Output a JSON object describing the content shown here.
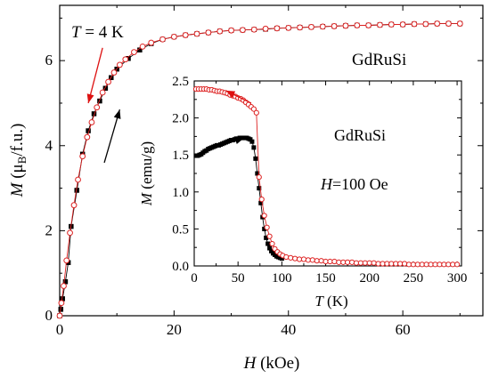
{
  "chart_data": [
    {
      "type": "scatter",
      "xlim": [
        0,
        74
      ],
      "ylim": [
        0,
        7.3
      ],
      "xticks": [
        "0",
        "20",
        "40",
        "60"
      ],
      "yticks": [
        "0",
        "2",
        "4",
        "6"
      ],
      "xlabel": {
        "sym": "H",
        "rest": " (kOe)"
      },
      "ylabel": {
        "sym": "M",
        "rest": " (μ",
        "sub": "B",
        "tail": "/f.u.)"
      },
      "annotations": {
        "temp_sym": "T",
        "temp_rest": " = 4 K",
        "compound": "GdRuSi"
      },
      "arrows": [
        {
          "direction": "down",
          "color": "#dd1111",
          "x0": 7.5,
          "y0": 6.3,
          "x1": 5.0,
          "y1": 5.0
        },
        {
          "direction": "up",
          "color": "#000000",
          "x0": 7.8,
          "y0": 3.6,
          "x1": 10.5,
          "y1": 4.85
        }
      ],
      "series": [
        {
          "marker": "filled-square",
          "color": "#000000",
          "x": [
            0,
            0.2,
            0.5,
            1,
            1.5,
            2,
            3,
            4,
            5,
            6,
            7,
            8,
            9,
            10,
            12,
            14,
            16,
            18,
            20,
            22,
            24,
            26,
            28,
            30,
            32,
            34,
            36,
            38,
            40,
            42,
            44,
            46,
            48,
            50,
            52,
            54,
            56,
            58,
            60,
            62,
            64,
            66,
            68,
            70
          ],
          "y": [
            0.0,
            0.15,
            0.4,
            0.8,
            1.25,
            2.1,
            2.95,
            3.8,
            4.35,
            4.75,
            5.05,
            5.35,
            5.6,
            5.8,
            6.05,
            6.25,
            6.4,
            6.5,
            6.56,
            6.6,
            6.63,
            6.66,
            6.69,
            6.71,
            6.72,
            6.73,
            6.74,
            6.76,
            6.77,
            6.78,
            6.79,
            6.8,
            6.81,
            6.82,
            6.83,
            6.83,
            6.84,
            6.85,
            6.85,
            6.86,
            6.86,
            6.87,
            6.87,
            6.87
          ]
        },
        {
          "marker": "open-circle",
          "color": "#dd2222",
          "x": [
            0,
            0.3,
            0.7,
            1.2,
            1.8,
            2.5,
            3.2,
            4,
            4.8,
            5.6,
            6.5,
            7.5,
            8.5,
            9.5,
            10.5,
            11.5,
            13,
            14.5,
            16,
            18,
            20,
            22,
            24,
            26,
            28,
            30,
            32,
            34,
            36,
            38,
            40,
            42,
            44,
            46,
            48,
            50,
            52,
            54,
            56,
            58,
            60,
            62,
            64,
            66,
            68,
            70
          ],
          "y": [
            0.0,
            0.3,
            0.7,
            1.3,
            1.95,
            2.6,
            3.2,
            3.75,
            4.2,
            4.55,
            4.9,
            5.25,
            5.5,
            5.72,
            5.9,
            6.03,
            6.2,
            6.33,
            6.42,
            6.5,
            6.56,
            6.6,
            6.63,
            6.66,
            6.69,
            6.71,
            6.72,
            6.73,
            6.75,
            6.76,
            6.77,
            6.78,
            6.79,
            6.8,
            6.81,
            6.82,
            6.83,
            6.83,
            6.84,
            6.85,
            6.85,
            6.86,
            6.86,
            6.87,
            6.87,
            6.87
          ]
        }
      ]
    },
    {
      "type": "scatter",
      "xlim": [
        0,
        305
      ],
      "ylim": [
        0,
        2.5
      ],
      "xticks": [
        "0",
        "50",
        "100",
        "150",
        "200",
        "250",
        "300"
      ],
      "yticks": [
        "0.0",
        "0.5",
        "1.0",
        "1.5",
        "2.0",
        "2.5"
      ],
      "xlabel": {
        "sym": "T",
        "rest": " (K)"
      },
      "ylabel": {
        "sym": "M",
        "rest": " (emu/g)"
      },
      "annotations": {
        "compound": "GdRuSi",
        "field_sym": "H",
        "field_rest": "=100 Oe"
      },
      "arrows": [
        {
          "direction": "left",
          "color": "#dd1111",
          "x0": 65,
          "y0": 2.2,
          "x1": 36,
          "y1": 2.37
        },
        {
          "direction": "right",
          "color": "#000000",
          "x0": 23,
          "y0": 1.6,
          "x1": 57,
          "y1": 1.73
        }
      ],
      "series": [
        {
          "marker": "filled-square",
          "color": "#000000",
          "x": [
            2,
            4,
            6,
            8,
            10,
            12,
            14,
            16,
            18,
            20,
            22,
            24,
            26,
            28,
            30,
            32,
            34,
            36,
            38,
            40,
            42,
            44,
            46,
            48,
            50,
            52,
            54,
            56,
            58,
            60,
            62,
            64,
            66,
            68,
            70,
            72,
            74,
            76,
            78,
            80,
            82,
            84,
            86,
            88,
            90,
            92,
            94,
            96,
            98,
            100
          ],
          "y": [
            1.49,
            1.49,
            1.5,
            1.51,
            1.53,
            1.55,
            1.56,
            1.58,
            1.59,
            1.6,
            1.61,
            1.62,
            1.63,
            1.63,
            1.64,
            1.65,
            1.66,
            1.67,
            1.68,
            1.69,
            1.7,
            1.7,
            1.71,
            1.72,
            1.72,
            1.73,
            1.73,
            1.73,
            1.73,
            1.73,
            1.72,
            1.71,
            1.68,
            1.6,
            1.45,
            1.25,
            1.05,
            0.85,
            0.66,
            0.5,
            0.38,
            0.3,
            0.24,
            0.2,
            0.17,
            0.15,
            0.13,
            0.12,
            0.11,
            0.1
          ]
        },
        {
          "marker": "open-circle",
          "color": "#dd2222",
          "x": [
            2,
            5,
            8,
            11,
            14,
            17,
            20,
            23,
            26,
            29,
            32,
            35,
            38,
            41,
            44,
            47,
            50,
            53,
            56,
            59,
            62,
            65,
            68,
            71,
            74,
            77,
            80,
            83,
            86,
            89,
            92,
            95,
            98,
            101,
            105,
            110,
            115,
            120,
            125,
            130,
            135,
            140,
            145,
            150,
            155,
            160,
            165,
            170,
            175,
            180,
            185,
            190,
            195,
            200,
            205,
            210,
            215,
            220,
            225,
            230,
            235,
            240,
            245,
            250,
            255,
            260,
            265,
            270,
            275,
            280,
            285,
            290,
            295,
            300
          ],
          "y": [
            2.39,
            2.39,
            2.39,
            2.39,
            2.39,
            2.38,
            2.38,
            2.37,
            2.36,
            2.36,
            2.35,
            2.34,
            2.33,
            2.31,
            2.3,
            2.29,
            2.27,
            2.26,
            2.24,
            2.21,
            2.18,
            2.15,
            2.12,
            2.07,
            1.2,
            0.9,
            0.68,
            0.52,
            0.4,
            0.3,
            0.23,
            0.19,
            0.16,
            0.14,
            0.12,
            0.11,
            0.1,
            0.09,
            0.09,
            0.08,
            0.08,
            0.07,
            0.07,
            0.06,
            0.06,
            0.06,
            0.05,
            0.05,
            0.05,
            0.05,
            0.04,
            0.04,
            0.04,
            0.04,
            0.04,
            0.03,
            0.03,
            0.03,
            0.03,
            0.03,
            0.03,
            0.03,
            0.02,
            0.02,
            0.02,
            0.02,
            0.02,
            0.02,
            0.02,
            0.02,
            0.02,
            0.02,
            0.02,
            0.02
          ]
        }
      ]
    }
  ]
}
